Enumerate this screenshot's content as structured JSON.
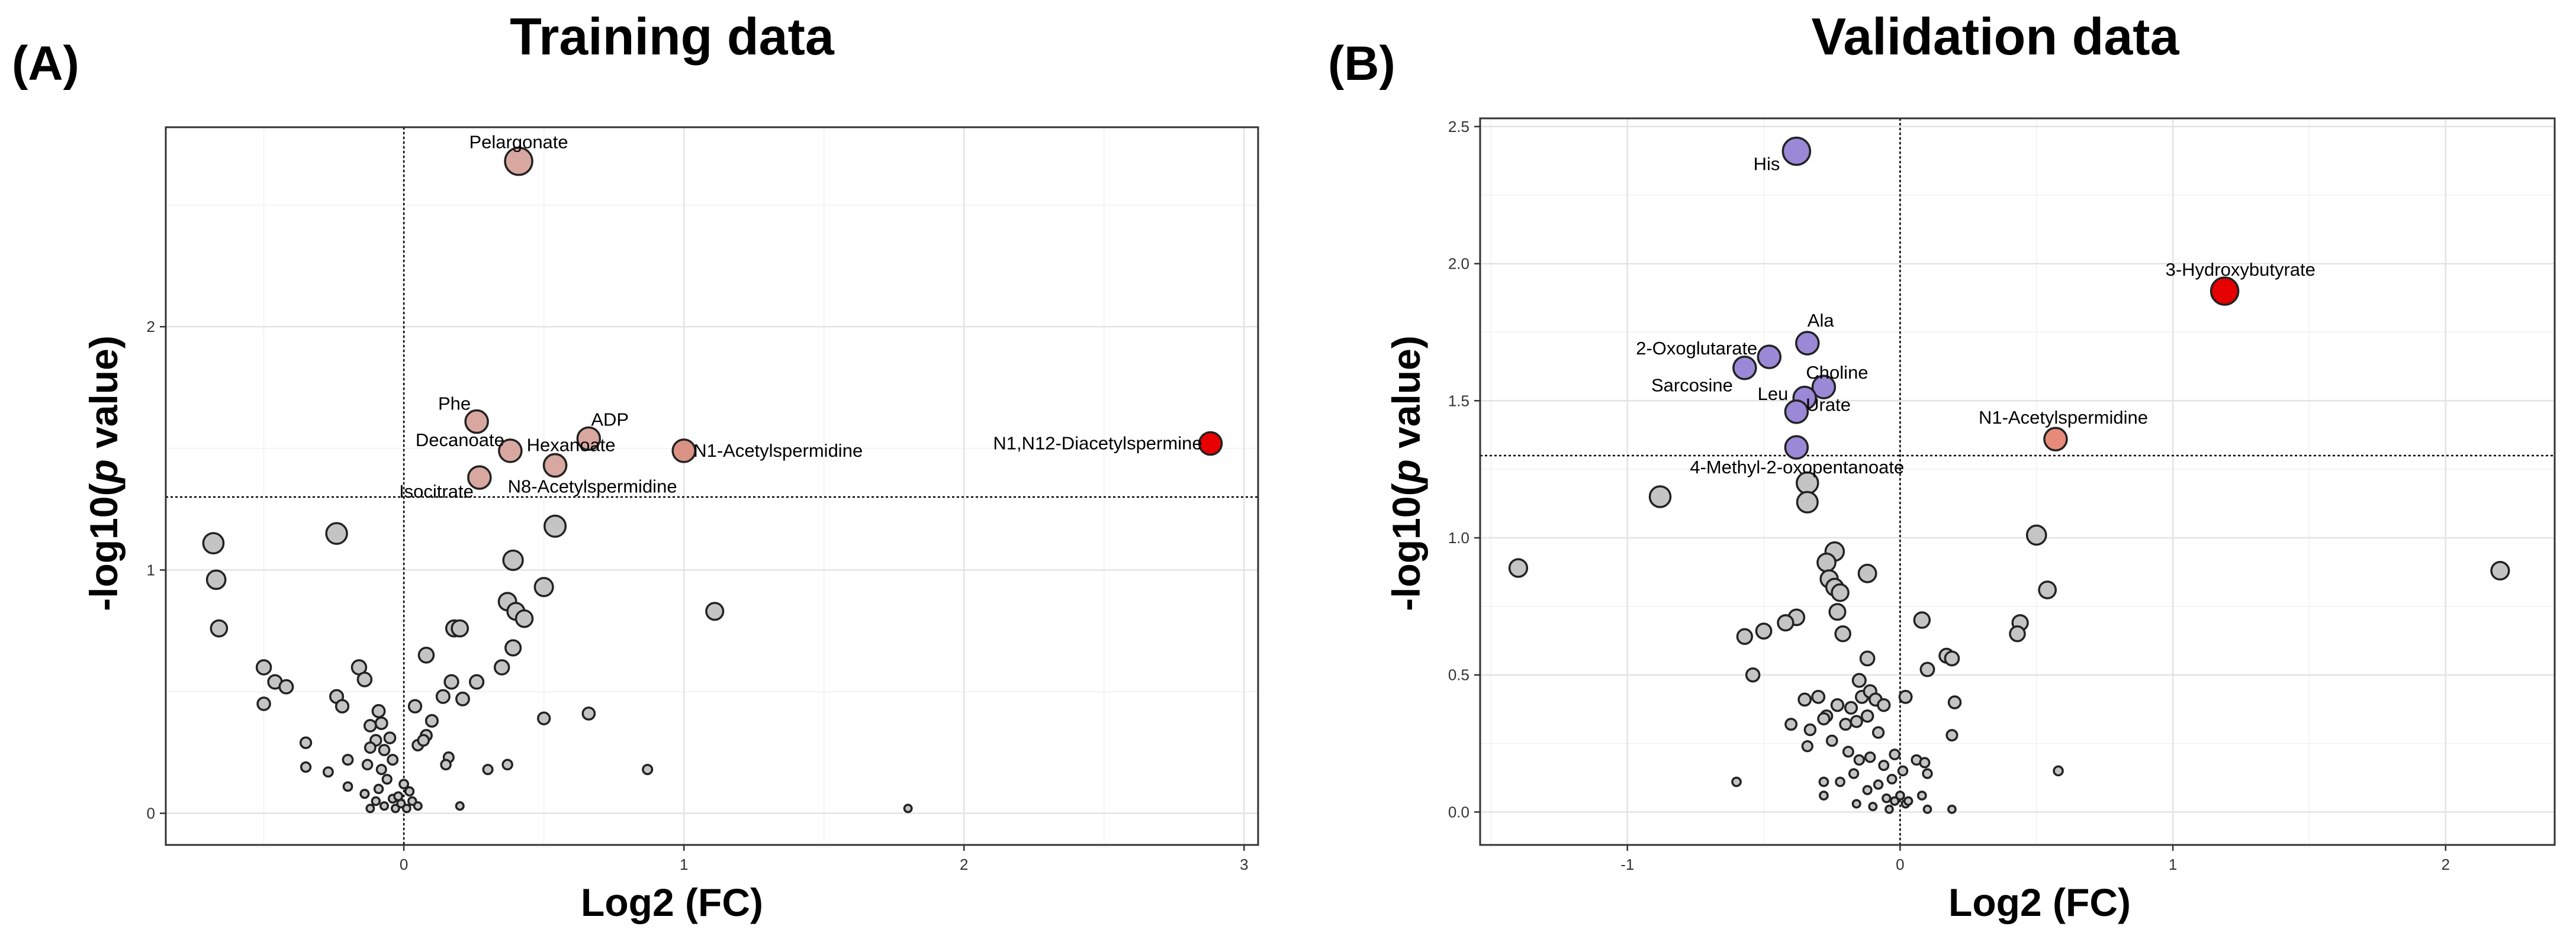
{
  "panels": [
    {
      "letter": "(A)",
      "chart_data": {
        "type": "scatter",
        "title": "Training data",
        "xlabel": "Log2 (FC)",
        "ylabel_main": "-log10(",
        "ylabel_italic": "p",
        "ylabel_end": " value)",
        "xlim": [
          -0.85,
          3.05
        ],
        "ylim": [
          -0.13,
          2.82
        ],
        "xticks": [
          0,
          1,
          2,
          3
        ],
        "xtick_labels": [
          "0",
          "1",
          "2",
          "3"
        ],
        "yticks": [
          0,
          1,
          2
        ],
        "ytick_labels": [
          "0",
          "1",
          "2"
        ],
        "grid": true,
        "threshold_y": 1.3,
        "reference_x": 0,
        "labeled_points": [
          {
            "name": "Pelargonate",
            "x": 0.41,
            "y": 2.68,
            "color": "#d8a8a0"
          },
          {
            "name": "Phe",
            "x": 0.26,
            "y": 1.61,
            "color": "#d8a8a0"
          },
          {
            "name": "ADP",
            "x": 0.66,
            "y": 1.54,
            "color": "#d8a8a0"
          },
          {
            "name": "Decanoate",
            "x": 0.38,
            "y": 1.49,
            "color": "#d8a8a0"
          },
          {
            "name": "Hexanoate",
            "x": 0.54,
            "y": 1.43,
            "color": "#d8a8a0"
          },
          {
            "name": "N1-Acetylspermidine",
            "x": 1.0,
            "y": 1.49,
            "color": "#d99284"
          },
          {
            "name": "N1,N12-Diacetylspermine",
            "x": 2.88,
            "y": 1.52,
            "color": "#e60000"
          },
          {
            "name": "N8-Acetylspermidine",
            "x": 0.54,
            "y": 1.43,
            "color": "#d8a8a0"
          },
          {
            "name": "Isocitrate",
            "x": 0.27,
            "y": 1.38,
            "color": "#d8a8a0"
          }
        ],
        "background_points": [
          {
            "x": -0.68,
            "y": 1.11
          },
          {
            "x": -0.67,
            "y": 0.96
          },
          {
            "x": -0.66,
            "y": 0.76
          },
          {
            "x": -0.24,
            "y": 1.15
          },
          {
            "x": -0.5,
            "y": 0.6
          },
          {
            "x": -0.46,
            "y": 0.54
          },
          {
            "x": -0.42,
            "y": 0.52
          },
          {
            "x": -0.5,
            "y": 0.45
          },
          {
            "x": -0.35,
            "y": 0.29
          },
          {
            "x": -0.24,
            "y": 0.48
          },
          {
            "x": -0.22,
            "y": 0.44
          },
          {
            "x": -0.16,
            "y": 0.6
          },
          {
            "x": -0.14,
            "y": 0.55
          },
          {
            "x": -0.12,
            "y": 0.36
          },
          {
            "x": -0.09,
            "y": 0.42
          },
          {
            "x": -0.08,
            "y": 0.37
          },
          {
            "x": -0.1,
            "y": 0.3
          },
          {
            "x": -0.07,
            "y": 0.26
          },
          {
            "x": -0.05,
            "y": 0.31
          },
          {
            "x": -0.04,
            "y": 0.22
          },
          {
            "x": -0.12,
            "y": 0.27
          },
          {
            "x": -0.13,
            "y": 0.2
          },
          {
            "x": -0.08,
            "y": 0.18
          },
          {
            "x": -0.06,
            "y": 0.14
          },
          {
            "x": -0.2,
            "y": 0.22
          },
          {
            "x": -0.27,
            "y": 0.17
          },
          {
            "x": -0.35,
            "y": 0.19
          },
          {
            "x": -0.2,
            "y": 0.11
          },
          {
            "x": -0.14,
            "y": 0.08
          },
          {
            "x": -0.1,
            "y": 0.05
          },
          {
            "x": -0.07,
            "y": 0.03
          },
          {
            "x": -0.04,
            "y": 0.06
          },
          {
            "x": -0.03,
            "y": 0.02
          },
          {
            "x": -0.01,
            "y": 0.04
          },
          {
            "x": 0.01,
            "y": 0.02
          },
          {
            "x": 0.03,
            "y": 0.05
          },
          {
            "x": 0.05,
            "y": 0.03
          },
          {
            "x": -0.12,
            "y": 0.02
          },
          {
            "x": 0.02,
            "y": 0.09
          },
          {
            "x": -0.02,
            "y": 0.07
          },
          {
            "x": 0.04,
            "y": 0.44
          },
          {
            "x": 0.08,
            "y": 0.65
          },
          {
            "x": 0.1,
            "y": 0.38
          },
          {
            "x": 0.08,
            "y": 0.32
          },
          {
            "x": 0.05,
            "y": 0.28
          },
          {
            "x": 0.07,
            "y": 0.3
          },
          {
            "x": 0.14,
            "y": 0.48
          },
          {
            "x": 0.17,
            "y": 0.54
          },
          {
            "x": 0.18,
            "y": 0.76
          },
          {
            "x": 0.2,
            "y": 0.76
          },
          {
            "x": 0.21,
            "y": 0.47
          },
          {
            "x": 0.26,
            "y": 0.54
          },
          {
            "x": 0.16,
            "y": 0.23
          },
          {
            "x": 0.15,
            "y": 0.2
          },
          {
            "x": 0.3,
            "y": 0.18
          },
          {
            "x": 0.37,
            "y": 0.2
          },
          {
            "x": 0.35,
            "y": 0.6
          },
          {
            "x": 0.37,
            "y": 0.87
          },
          {
            "x": 0.39,
            "y": 1.04
          },
          {
            "x": 0.4,
            "y": 0.83
          },
          {
            "x": 0.43,
            "y": 0.8
          },
          {
            "x": 0.39,
            "y": 0.68
          },
          {
            "x": 0.5,
            "y": 0.93
          },
          {
            "x": 0.54,
            "y": 1.18
          },
          {
            "x": 0.5,
            "y": 0.39
          },
          {
            "x": 0.66,
            "y": 0.41
          },
          {
            "x": 0.87,
            "y": 0.18
          },
          {
            "x": 1.11,
            "y": 0.83
          },
          {
            "x": 1.8,
            "y": 0.02
          },
          {
            "x": 0.2,
            "y": 0.03
          },
          {
            "x": 0.0,
            "y": 0.12
          },
          {
            "x": -0.09,
            "y": 0.1
          }
        ]
      }
    },
    {
      "letter": "(B)",
      "chart_data": {
        "type": "scatter",
        "title": "Validation data",
        "xlabel": "Log2 (FC)",
        "ylabel_main": "-log10(",
        "ylabel_italic": "p",
        "ylabel_end": " value)",
        "xlim": [
          -1.54,
          2.4
        ],
        "ylim": [
          -0.12,
          2.53
        ],
        "xticks": [
          -1,
          0,
          1,
          2
        ],
        "xtick_labels": [
          "-1",
          "0",
          "1",
          "2"
        ],
        "yticks": [
          0,
          0.5,
          1,
          1.5,
          2,
          2.5
        ],
        "ytick_labels": [
          "0.0",
          "0.5",
          "1.0",
          "1.5",
          "2.0",
          "2.5"
        ],
        "grid": true,
        "threshold_y": 1.3,
        "reference_x": 0,
        "labeled_points": [
          {
            "name": "His",
            "x": -0.38,
            "y": 2.41,
            "color": "#9b88d6"
          },
          {
            "name": "3-Hydroxybutyrate",
            "x": 1.19,
            "y": 1.9,
            "color": "#e60000"
          },
          {
            "name": "Ala",
            "x": -0.34,
            "y": 1.71,
            "color": "#9b88d6"
          },
          {
            "name": "2-Oxoglutarate",
            "x": -0.48,
            "y": 1.66,
            "color": "#9b88d6"
          },
          {
            "name": "Sarcosine",
            "x": -0.57,
            "y": 1.62,
            "color": "#9b88d6"
          },
          {
            "name": "Choline",
            "x": -0.28,
            "y": 1.55,
            "color": "#9b88d6"
          },
          {
            "name": "Urate",
            "x": -0.35,
            "y": 1.51,
            "color": "#9b88d6"
          },
          {
            "name": "Leu",
            "x": -0.38,
            "y": 1.46,
            "color": "#9b88d6"
          },
          {
            "name": "N1-Acetylspermidine",
            "x": 0.57,
            "y": 1.36,
            "color": "#e88a7a"
          },
          {
            "name": "4-Methyl-2-oxopentanoate",
            "x": -0.38,
            "y": 1.33,
            "color": "#9b88d6"
          }
        ],
        "background_points": [
          {
            "x": -1.4,
            "y": 0.89
          },
          {
            "x": -0.88,
            "y": 1.15
          },
          {
            "x": -0.34,
            "y": 1.2
          },
          {
            "x": -0.34,
            "y": 1.13
          },
          {
            "x": 2.2,
            "y": 0.88
          },
          {
            "x": 0.5,
            "y": 1.01
          },
          {
            "x": 0.54,
            "y": 0.81
          },
          {
            "x": 0.44,
            "y": 0.69
          },
          {
            "x": 0.43,
            "y": 0.65
          },
          {
            "x": 0.58,
            "y": 0.15
          },
          {
            "x": -0.24,
            "y": 0.95
          },
          {
            "x": -0.27,
            "y": 0.91
          },
          {
            "x": -0.26,
            "y": 0.85
          },
          {
            "x": -0.24,
            "y": 0.82
          },
          {
            "x": -0.22,
            "y": 0.8
          },
          {
            "x": -0.12,
            "y": 0.87
          },
          {
            "x": -0.23,
            "y": 0.73
          },
          {
            "x": -0.21,
            "y": 0.65
          },
          {
            "x": -0.38,
            "y": 0.71
          },
          {
            "x": -0.42,
            "y": 0.69
          },
          {
            "x": -0.5,
            "y": 0.66
          },
          {
            "x": -0.57,
            "y": 0.64
          },
          {
            "x": -0.54,
            "y": 0.5
          },
          {
            "x": -0.12,
            "y": 0.56
          },
          {
            "x": -0.15,
            "y": 0.48
          },
          {
            "x": -0.14,
            "y": 0.42
          },
          {
            "x": -0.11,
            "y": 0.44
          },
          {
            "x": -0.09,
            "y": 0.41
          },
          {
            "x": -0.06,
            "y": 0.39
          },
          {
            "x": -0.18,
            "y": 0.38
          },
          {
            "x": -0.23,
            "y": 0.39
          },
          {
            "x": -0.3,
            "y": 0.42
          },
          {
            "x": -0.27,
            "y": 0.35
          },
          {
            "x": -0.35,
            "y": 0.41
          },
          {
            "x": -0.4,
            "y": 0.32
          },
          {
            "x": -0.33,
            "y": 0.3
          },
          {
            "x": -0.28,
            "y": 0.34
          },
          {
            "x": -0.2,
            "y": 0.32
          },
          {
            "x": -0.16,
            "y": 0.33
          },
          {
            "x": -0.12,
            "y": 0.35
          },
          {
            "x": -0.08,
            "y": 0.29
          },
          {
            "x": -0.34,
            "y": 0.24
          },
          {
            "x": -0.25,
            "y": 0.26
          },
          {
            "x": -0.19,
            "y": 0.22
          },
          {
            "x": -0.15,
            "y": 0.19
          },
          {
            "x": -0.11,
            "y": 0.2
          },
          {
            "x": -0.06,
            "y": 0.17
          },
          {
            "x": -0.02,
            "y": 0.21
          },
          {
            "x": 0.01,
            "y": 0.15
          },
          {
            "x": -0.03,
            "y": 0.12
          },
          {
            "x": -0.08,
            "y": 0.1
          },
          {
            "x": -0.12,
            "y": 0.08
          },
          {
            "x": -0.17,
            "y": 0.14
          },
          {
            "x": -0.22,
            "y": 0.11
          },
          {
            "x": -0.28,
            "y": 0.06
          },
          {
            "x": -0.05,
            "y": 0.05
          },
          {
            "x": -0.02,
            "y": 0.04
          },
          {
            "x": 0.0,
            "y": 0.06
          },
          {
            "x": 0.02,
            "y": 0.03
          },
          {
            "x": -0.04,
            "y": 0.01
          },
          {
            "x": -0.1,
            "y": 0.02
          },
          {
            "x": -0.16,
            "y": 0.03
          },
          {
            "x": -0.6,
            "y": 0.11
          },
          {
            "x": 0.06,
            "y": 0.19
          },
          {
            "x": 0.09,
            "y": 0.18
          },
          {
            "x": 0.1,
            "y": 0.14
          },
          {
            "x": 0.08,
            "y": 0.06
          },
          {
            "x": 0.1,
            "y": 0.01
          },
          {
            "x": 0.19,
            "y": 0.01
          },
          {
            "x": 0.08,
            "y": 0.7
          },
          {
            "x": 0.1,
            "y": 0.52
          },
          {
            "x": 0.17,
            "y": 0.57
          },
          {
            "x": 0.19,
            "y": 0.56
          },
          {
            "x": 0.2,
            "y": 0.4
          },
          {
            "x": 0.19,
            "y": 0.28
          },
          {
            "x": 0.02,
            "y": 0.42
          },
          {
            "x": 0.03,
            "y": 0.04
          },
          {
            "x": -0.28,
            "y": 0.11
          }
        ]
      }
    }
  ]
}
